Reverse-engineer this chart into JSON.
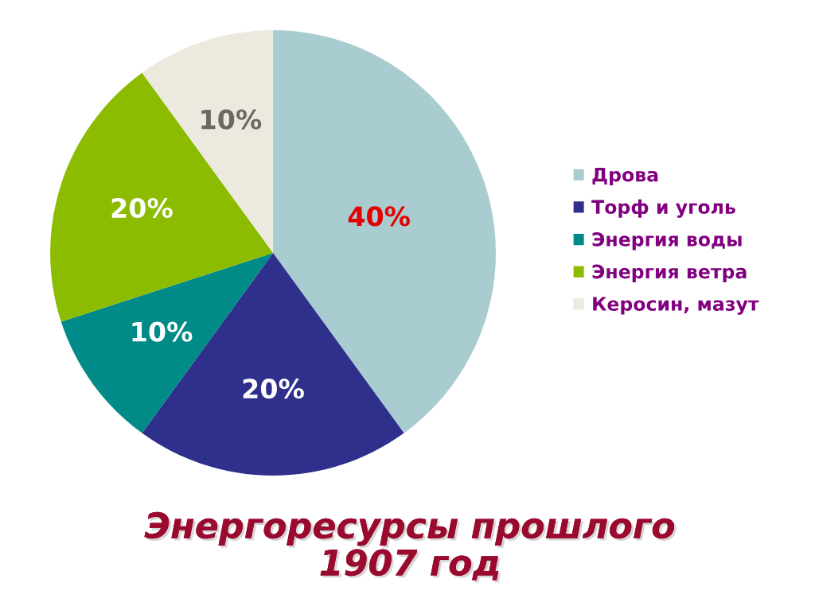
{
  "chart_data": {
    "type": "pie",
    "title": "Энергоресурсы прошлого\n1907 год",
    "categories": [
      "Дрова",
      "Торф и уголь",
      "Энергия воды",
      "Энергия ветра",
      "Керосин, мазут"
    ],
    "values": [
      40,
      20,
      10,
      20,
      10
    ],
    "value_labels": [
      "40%",
      "20%",
      "10%",
      "20%",
      "10%"
    ],
    "colors": [
      "#a8ccd0",
      "#2f2f8c",
      "#008a88",
      "#8cbc00",
      "#ece9df"
    ],
    "legend": "right"
  }
}
